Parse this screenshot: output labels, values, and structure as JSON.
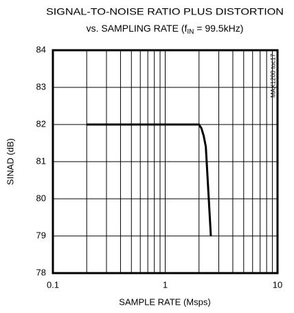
{
  "chart_data": {
    "type": "line",
    "title": "SIGNAL-TO-NOISE RATIO PLUS DISTORTION",
    "subtitle_parts": [
      "vs. SAMPLING RATE (f",
      "IN",
      " = 99.5kHz)"
    ],
    "annotation": "MAX1200 toc17",
    "xlabel": "SAMPLE RATE (Msps)",
    "ylabel": "SINAD (dB)",
    "xscale": "log",
    "x": [
      0.2,
      2.0,
      2.1,
      2.2,
      2.3,
      2.55
    ],
    "series": [
      {
        "color": "#000000",
        "values": [
          82,
          82,
          81.9,
          81.7,
          81.4,
          79
        ]
      }
    ],
    "xlim": [
      0.1,
      10
    ],
    "xticks": [
      0.1,
      1,
      10
    ],
    "xminor_ticks": [
      0.2,
      0.3,
      0.4,
      0.5,
      0.6,
      0.7,
      0.8,
      0.9,
      2,
      3,
      4,
      5,
      6,
      7,
      8,
      9
    ],
    "ylim": [
      78,
      84
    ],
    "yticks": [
      78,
      79,
      80,
      81,
      82,
      83,
      84
    ],
    "grid": true
  }
}
